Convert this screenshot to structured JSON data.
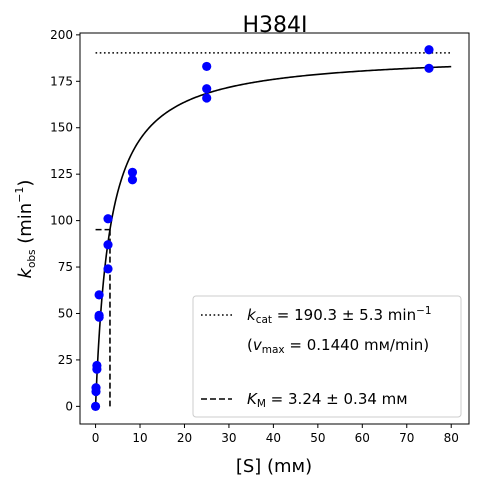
{
  "chart_data": {
    "type": "scatter",
    "title": "H384I",
    "xlabel": "[S] (mм)",
    "ylabel": {
      "main": "k",
      "sub": "obs",
      "unit_prefix": " (min",
      "unit_sup": "−1",
      "unit_suffix": ")"
    },
    "xlim": [
      -3.5,
      84
    ],
    "ylim": [
      -9.5,
      201
    ],
    "xticks": [
      0,
      10,
      20,
      30,
      40,
      50,
      60,
      70,
      80
    ],
    "yticks": [
      0,
      25,
      50,
      75,
      100,
      125,
      150,
      175,
      200
    ],
    "grid": false,
    "legend_position": "bottom-right",
    "colors": {
      "points": "#0000ff",
      "lines": "#000000"
    },
    "series": [
      {
        "type": "scatter",
        "x": [
          0,
          0.1,
          0.1,
          0.3,
          0.3,
          0.8,
          0.8,
          0.8,
          2.8,
          2.8,
          2.8,
          8.3,
          8.3,
          25,
          25,
          25,
          75,
          75
        ],
        "y": [
          0,
          8,
          10,
          20,
          22,
          48,
          49,
          60,
          74,
          87,
          101,
          122,
          126,
          166,
          171,
          183,
          182,
          192
        ]
      },
      {
        "type": "fit-curve",
        "model": "michaelis-menten",
        "vmax": 190.3,
        "km": 3.24,
        "x_range": [
          0,
          80
        ]
      },
      {
        "type": "hline",
        "style": "dotted",
        "y": 190.3,
        "x_range": [
          0,
          80
        ]
      },
      {
        "type": "km-marker",
        "style": "dashed",
        "x": 3.24,
        "y": 95.15,
        "x_from": 0,
        "y_from": 0
      }
    ],
    "legend": {
      "kcat": {
        "symbol": "k",
        "sub": "cat",
        "value": " = 190.3 ± 5.3 min",
        "sup": "−1"
      },
      "vmax": {
        "prefix": "(",
        "symbol": "v",
        "sub": "max",
        "value": " = 0.1440 mм/min)"
      },
      "km": {
        "symbol": "K",
        "sub": "M",
        "value": " = 3.24 ± 0.34 mм"
      }
    }
  }
}
